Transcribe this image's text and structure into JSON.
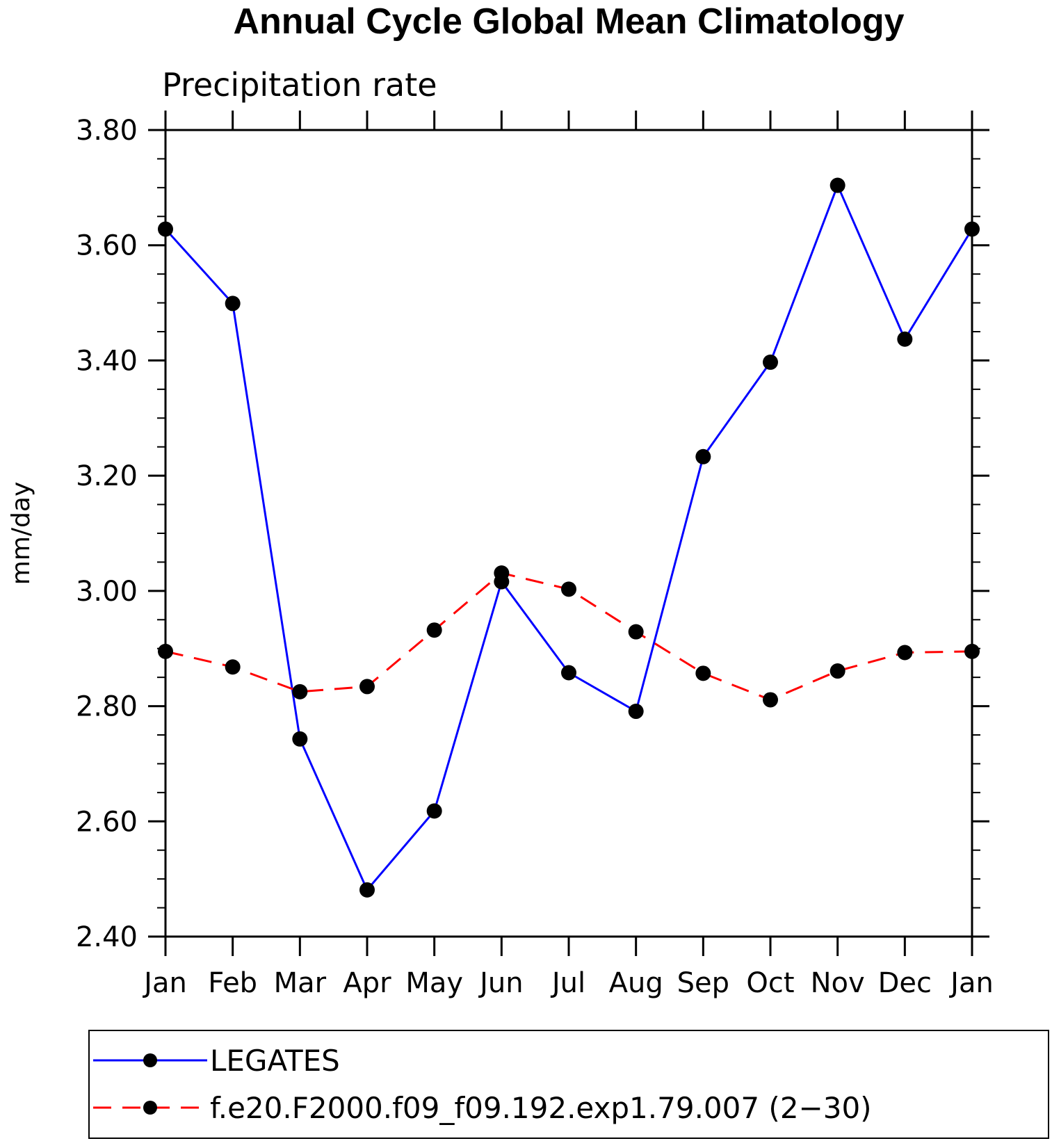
{
  "chart_data": {
    "type": "line",
    "title": "Annual Cycle Global Mean Climatology",
    "subtitle": "Precipitation rate",
    "ylabel": "mm/day",
    "xlabel": "",
    "categories": [
      "Jan",
      "Feb",
      "Mar",
      "Apr",
      "May",
      "Jun",
      "Jul",
      "Aug",
      "Sep",
      "Oct",
      "Nov",
      "Dec",
      "Jan"
    ],
    "ylim": [
      2.4,
      3.8
    ],
    "yticks": [
      "2.40",
      "2.60",
      "2.80",
      "3.00",
      "3.20",
      "3.40",
      "3.60",
      "3.80"
    ],
    "legend_position": "bottom",
    "series": [
      {
        "name": "LEGATES",
        "color": "#0000ff",
        "style": "solid",
        "marker": "filled-circle",
        "values": [
          3.628,
          3.499,
          2.743,
          2.481,
          2.618,
          3.016,
          2.858,
          2.791,
          3.233,
          3.397,
          3.704,
          3.437,
          3.628
        ]
      },
      {
        "name": "f.e20.F2000.f09_f09.192.exp1.79.007 (2−30)",
        "color": "#ff0000",
        "style": "dashed",
        "marker": "filled-circle",
        "values": [
          2.895,
          2.868,
          2.825,
          2.834,
          2.932,
          3.031,
          3.003,
          2.929,
          2.857,
          2.811,
          2.861,
          2.893,
          2.895
        ]
      }
    ]
  }
}
